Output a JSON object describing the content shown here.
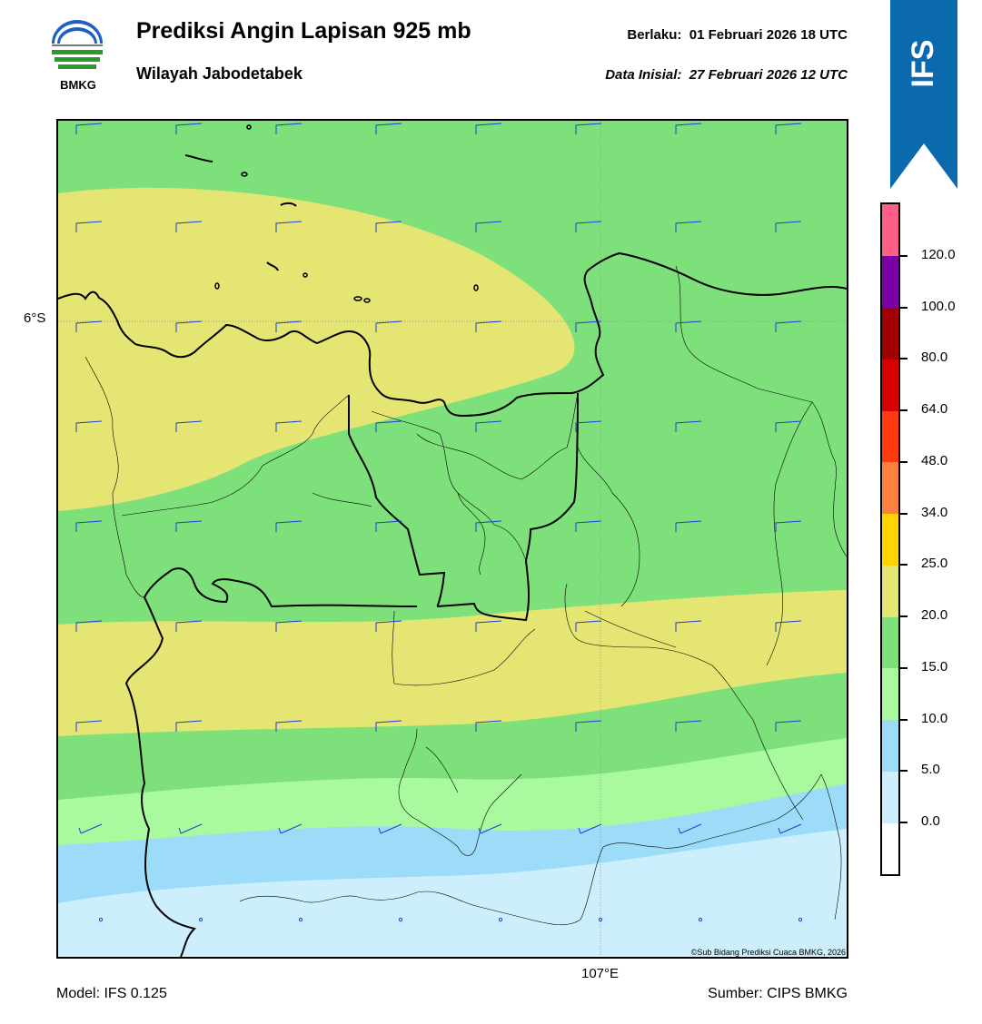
{
  "header": {
    "title": "Prediksi Angin Lapisan 925 mb",
    "subtitle": "Wilayah Jabodetabek",
    "valid_label": "Berlaku:",
    "valid_value": "01 Februari 2026 18 UTC",
    "initial_label": "Data Inisial:",
    "initial_value": "27 Februari 2026 12 UTC"
  },
  "logo": {
    "text": "BMKG",
    "icon": "bmkg-logo-icon"
  },
  "ribbon": {
    "text": "IFS",
    "color": "#0a6aad"
  },
  "map": {
    "lat_label": "6°S",
    "lon_label": "107°E",
    "copyright": "©Sub Bidang Prediksi Cuaca BMKG, 2026",
    "colors": {
      "calm": "#cdeffd",
      "light_blue": "#9ddcf9",
      "light_green": "#a9f99f",
      "green": "#7ee07b",
      "yellow": "#e4e572",
      "barb": "#1f3fd8"
    }
  },
  "colorbar": {
    "labels": [
      "0.0",
      "5.0",
      "10.0",
      "15.0",
      "20.0",
      "25.0",
      "34.0",
      "48.0",
      "64.0",
      "80.0",
      "100.0",
      "120.0"
    ],
    "colors": [
      "#ffffff",
      "#cdeffd",
      "#9ddcf9",
      "#a9f99f",
      "#7ee07b",
      "#e4e572",
      "#ffd400",
      "#ff8040",
      "#ff3a10",
      "#d80000",
      "#a00000",
      "#7a00a6",
      "#ff5f86"
    ]
  },
  "footer": {
    "model": "Model: IFS 0.125",
    "source": "Sumber: CIPS BMKG"
  }
}
